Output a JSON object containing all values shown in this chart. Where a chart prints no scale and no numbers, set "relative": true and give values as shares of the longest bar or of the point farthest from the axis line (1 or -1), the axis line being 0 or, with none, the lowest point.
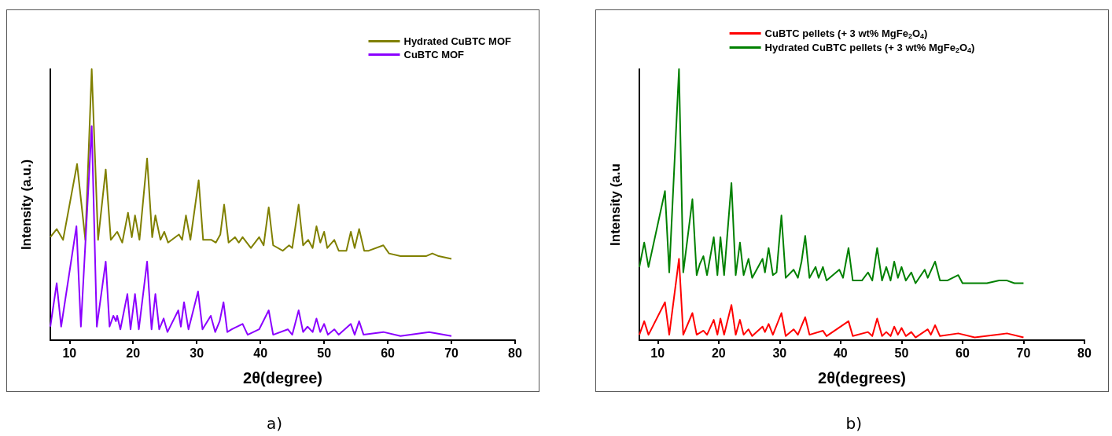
{
  "chart_data": [
    {
      "type": "line",
      "xlabel": "2θ(degree)",
      "ylabel": "Intensity (a.u.)",
      "relative": true,
      "xlim": [
        7,
        80
      ],
      "xticks": [
        10,
        20,
        30,
        40,
        50,
        60,
        70,
        80
      ],
      "legend": "top right",
      "grid": false,
      "marker": "none",
      "annotations": [
        "a)"
      ],
      "series": [
        {
          "name": "Hydrated CuBTC MOF",
          "color": "#808000",
          "x": [
            7,
            8,
            9,
            11.2,
            12.5,
            13.5,
            14.5,
            15.7,
            16.5,
            17.5,
            18.3,
            19.2,
            19.8,
            20.3,
            21,
            22.2,
            23,
            23.5,
            24.3,
            24.9,
            25.5,
            27.2,
            27.7,
            28.3,
            29,
            30.3,
            31,
            32.3,
            33,
            33.7,
            34.3,
            35,
            36,
            36.6,
            37.2,
            38.5,
            39.8,
            40.5,
            41.3,
            42,
            43.5,
            44.5,
            45,
            46,
            46.7,
            47.5,
            48.2,
            48.8,
            49.4,
            50,
            50.5,
            51.6,
            52.3,
            53.5,
            54.2,
            54.8,
            55.5,
            56.3,
            57,
            59.3,
            60.2,
            62,
            64,
            66,
            67,
            68,
            70
          ],
          "values": [
            0.38,
            0.41,
            0.37,
            0.65,
            0.37,
            1.0,
            0.37,
            0.63,
            0.37,
            0.4,
            0.36,
            0.47,
            0.38,
            0.46,
            0.37,
            0.67,
            0.38,
            0.46,
            0.37,
            0.4,
            0.36,
            0.39,
            0.37,
            0.46,
            0.37,
            0.59,
            0.37,
            0.37,
            0.36,
            0.39,
            0.5,
            0.36,
            0.38,
            0.36,
            0.38,
            0.34,
            0.38,
            0.35,
            0.49,
            0.35,
            0.33,
            0.35,
            0.34,
            0.5,
            0.35,
            0.37,
            0.34,
            0.42,
            0.36,
            0.4,
            0.34,
            0.37,
            0.33,
            0.33,
            0.4,
            0.34,
            0.41,
            0.33,
            0.33,
            0.35,
            0.32,
            0.31,
            0.31,
            0.31,
            0.32,
            0.31,
            0.3
          ]
        },
        {
          "name": "CuBTC MOF",
          "color": "#8b00ff",
          "x": [
            7,
            8,
            8.7,
            11.1,
            11.8,
            13.5,
            14.3,
            15.7,
            16.3,
            16.9,
            17.3,
            17.5,
            18,
            19.1,
            19.6,
            20.3,
            20.9,
            22.2,
            22.9,
            23.5,
            24.1,
            24.8,
            25.4,
            27.1,
            27.5,
            28,
            28.7,
            30.2,
            30.9,
            32.2,
            32.9,
            33.6,
            34.2,
            34.8,
            35.5,
            37.2,
            38,
            39.8,
            41.3,
            42,
            44.3,
            45,
            46,
            46.7,
            47.4,
            48.2,
            48.8,
            49.4,
            50,
            50.6,
            51.6,
            52.3,
            54.2,
            54.8,
            55.5,
            56.2,
            59.3,
            62,
            66.5,
            70
          ],
          "values": [
            0.05,
            0.21,
            0.05,
            0.42,
            0.05,
            0.79,
            0.05,
            0.29,
            0.05,
            0.09,
            0.07,
            0.09,
            0.04,
            0.17,
            0.04,
            0.17,
            0.04,
            0.29,
            0.04,
            0.17,
            0.04,
            0.08,
            0.03,
            0.11,
            0.05,
            0.14,
            0.04,
            0.18,
            0.04,
            0.09,
            0.03,
            0.07,
            0.14,
            0.03,
            0.04,
            0.06,
            0.02,
            0.04,
            0.11,
            0.02,
            0.04,
            0.02,
            0.11,
            0.03,
            0.05,
            0.03,
            0.08,
            0.03,
            0.06,
            0.02,
            0.04,
            0.02,
            0.06,
            0.02,
            0.07,
            0.02,
            0.03,
            0.015,
            0.03,
            0.015
          ]
        }
      ]
    },
    {
      "type": "line",
      "xlabel": "2θ(degrees)",
      "ylabel": "Intensity (a.u",
      "relative": true,
      "xlim": [
        7,
        80
      ],
      "xticks": [
        10,
        20,
        30,
        40,
        50,
        60,
        70,
        80
      ],
      "legend": "top",
      "grid": false,
      "marker": "none",
      "annotations": [
        "b)"
      ],
      "series": [
        {
          "name": "CuBTC pellets (+ 3 wt% MgFe$_{2}$O$_{4}$)",
          "color": "#ff0000",
          "x": [
            7,
            7.8,
            8.5,
            11.2,
            11.9,
            13.5,
            14.2,
            15.7,
            16.4,
            17.5,
            18.1,
            19.2,
            19.8,
            20.3,
            20.9,
            22.1,
            22.8,
            23.5,
            24.1,
            24.9,
            25.5,
            27.2,
            27.6,
            28.2,
            28.9,
            30.3,
            31,
            32.3,
            33,
            34.2,
            34.9,
            37.1,
            37.7,
            41.3,
            42,
            44.5,
            45.2,
            46,
            46.8,
            47.5,
            48.2,
            48.8,
            49.4,
            50,
            50.7,
            51.6,
            52.3,
            54.3,
            54.8,
            55.5,
            56.3,
            59.3,
            62,
            67.3,
            70
          ],
          "values": [
            0.02,
            0.07,
            0.02,
            0.14,
            0.02,
            0.3,
            0.02,
            0.1,
            0.02,
            0.035,
            0.02,
            0.075,
            0.02,
            0.08,
            0.02,
            0.13,
            0.02,
            0.075,
            0.02,
            0.04,
            0.015,
            0.05,
            0.03,
            0.06,
            0.02,
            0.1,
            0.015,
            0.04,
            0.02,
            0.085,
            0.02,
            0.035,
            0.015,
            0.07,
            0.015,
            0.03,
            0.015,
            0.08,
            0.015,
            0.03,
            0.015,
            0.05,
            0.02,
            0.045,
            0.015,
            0.03,
            0.01,
            0.04,
            0.02,
            0.055,
            0.015,
            0.025,
            0.01,
            0.025,
            0.01
          ]
        },
        {
          "name": "Hydrated CuBTC pellets (+ 3 wt% MgFe$_{2}$O$_{4}$)",
          "color": "#008000",
          "x": [
            7,
            7.8,
            8.5,
            11.2,
            11.9,
            13.5,
            14.2,
            15.7,
            16.4,
            16.9,
            17.5,
            18.1,
            19.2,
            19.8,
            20.3,
            20.9,
            22.1,
            22.8,
            23.5,
            24.1,
            24.9,
            25.5,
            27.2,
            27.6,
            28.2,
            28.9,
            29.5,
            30.3,
            31,
            32.3,
            33,
            33.6,
            34.2,
            34.9,
            35.9,
            36.4,
            37.1,
            37.7,
            39.8,
            40.4,
            41.3,
            42,
            43.5,
            44.5,
            45.2,
            46,
            46.8,
            47.5,
            48.2,
            48.8,
            49.4,
            50,
            50.7,
            51.6,
            52.3,
            53.8,
            54.3,
            55.5,
            56.3,
            57.5,
            59.3,
            60,
            62,
            64,
            66,
            67.3,
            68.5,
            70
          ],
          "values": [
            0.27,
            0.36,
            0.27,
            0.55,
            0.25,
            1.0,
            0.25,
            0.52,
            0.24,
            0.28,
            0.31,
            0.24,
            0.38,
            0.24,
            0.38,
            0.24,
            0.58,
            0.24,
            0.36,
            0.24,
            0.3,
            0.23,
            0.3,
            0.25,
            0.34,
            0.24,
            0.25,
            0.46,
            0.23,
            0.26,
            0.23,
            0.29,
            0.385,
            0.23,
            0.27,
            0.23,
            0.27,
            0.22,
            0.26,
            0.23,
            0.34,
            0.22,
            0.22,
            0.25,
            0.22,
            0.34,
            0.22,
            0.27,
            0.22,
            0.29,
            0.23,
            0.27,
            0.22,
            0.25,
            0.21,
            0.26,
            0.23,
            0.29,
            0.22,
            0.22,
            0.24,
            0.21,
            0.21,
            0.21,
            0.22,
            0.22,
            0.21,
            0.21
          ]
        }
      ]
    }
  ]
}
